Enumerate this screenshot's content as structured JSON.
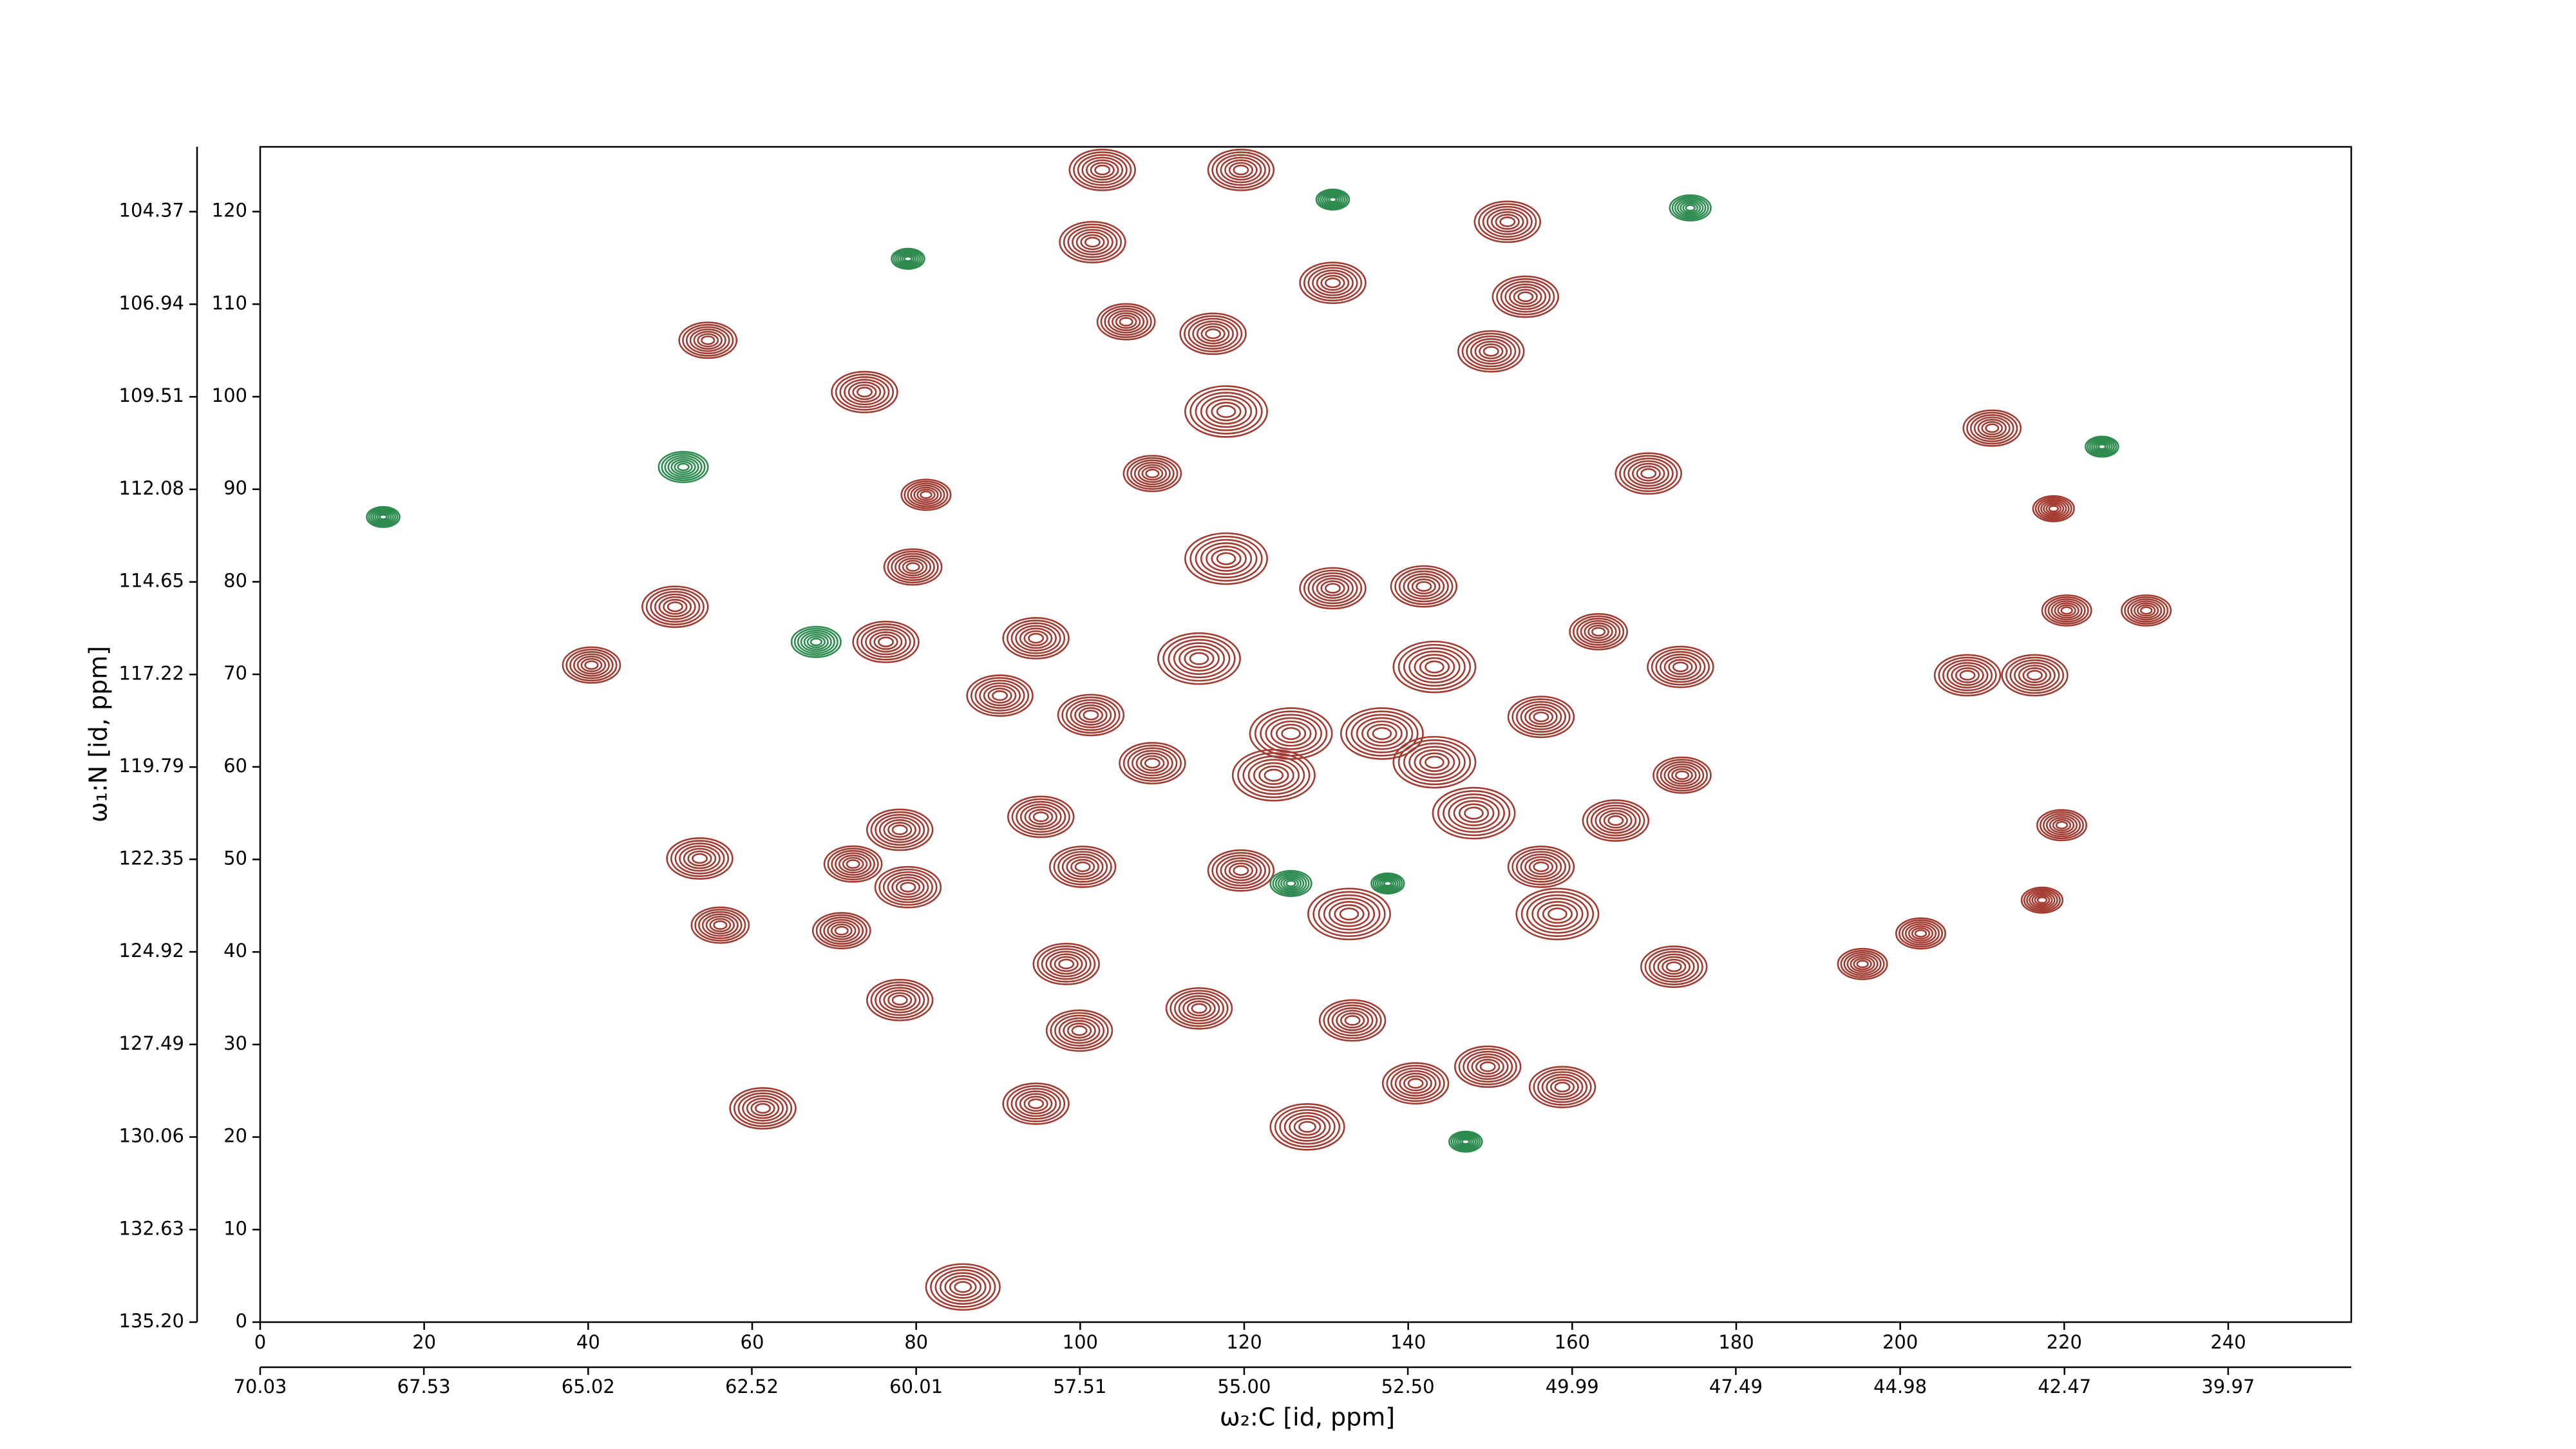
{
  "chart_data": {
    "type": "contour",
    "xlabel": "ω₂:C [id, ppm]",
    "ylabel": "ω₁:N [id, ppm]",
    "xlim": [
      0,
      255
    ],
    "ylim": [
      0,
      127
    ],
    "xticks": [
      0,
      20,
      40,
      60,
      80,
      100,
      120,
      140,
      160,
      180,
      200,
      220,
      240
    ],
    "yticks": [
      0,
      10,
      20,
      30,
      40,
      50,
      60,
      70,
      80,
      90,
      100,
      110,
      120
    ],
    "x2lim": [
      70.03,
      38.09
    ],
    "x2ticks": [
      70.03,
      67.53,
      65.02,
      62.52,
      60.01,
      57.51,
      {
        "value": 55.0,
        "label": "55.00"
      },
      {
        "value": 52.5,
        "label": "52.50"
      },
      49.99,
      47.49,
      44.98,
      42.47,
      39.97
    ],
    "y2lim": [
      135.2,
      102.57
    ],
    "y2ticks": [
      {
        "value": 135.2,
        "label": "135.20"
      },
      132.63,
      130.06,
      127.49,
      124.92,
      122.35,
      119.79,
      117.22,
      114.65,
      112.08,
      109.51,
      106.94,
      104.37
    ],
    "series": [
      {
        "color": "#a33a30",
        "x": [
          102.7,
          119.6,
          101.5,
          152.1,
          130.8,
          154.3,
          105.6,
          116.2,
          54.6,
          150.1,
          73.7,
          117.8,
          211.2,
          108.8,
          169.3,
          81.2,
          218.7,
          117.8,
          79.6,
          130.8,
          141.9,
          50.6,
          220.3,
          230.0,
          40.4,
          76.3,
          94.6,
          114.5,
          163.2,
          173.2,
          208.2,
          216.4,
          90.2,
          101.3,
          125.7,
          143.2,
          156.2,
          173.4,
          108.8,
          148.0,
          219.7,
          95.2,
          78.0,
          53.6,
          100.3,
          119.6,
          165.3,
          156.2,
          72.3,
          79.0,
          56.1,
          70.9,
          132.8,
          158.2,
          202.5,
          195.4,
          217.3,
          98.3,
          172.4,
          78.0,
          114.5,
          133.2,
          99.9,
          140.9,
          158.8,
          149.7,
          94.6,
          61.3,
          127.7,
          85.7,
          143.2,
          123.6,
          136.8
        ],
        "values": [
          124.5,
          124.5,
          116.7,
          118.9,
          112.3,
          110.8,
          108.1,
          106.8,
          106.1,
          104.9,
          100.5,
          98.4,
          96.6,
          91.7,
          91.7,
          89.4,
          87.9,
          82.5,
          81.6,
          79.3,
          79.5,
          77.3,
          76.9,
          76.9,
          71.0,
          73.5,
          73.9,
          71.7,
          74.6,
          70.8,
          69.9,
          69.9,
          67.7,
          65.6,
          63.6,
          70.8,
          65.4,
          59.1,
          60.4,
          55.0,
          53.7,
          54.6,
          53.2,
          50.1,
          49.2,
          48.8,
          54.2,
          49.2,
          49.5,
          47.0,
          42.9,
          42.3,
          44.1,
          44.1,
          42.0,
          38.7,
          45.6,
          38.7,
          38.4,
          34.8,
          33.9,
          32.6,
          31.5,
          25.8,
          25.4,
          27.6,
          23.6,
          23.1,
          21.1,
          3.8,
          60.5,
          59.1,
          63.6
        ],
        "sizes": [
          4,
          4,
          4,
          4,
          4,
          4,
          3.5,
          4,
          3.5,
          4,
          4,
          5,
          3.5,
          3.5,
          4,
          3,
          2.5,
          5,
          3.5,
          4,
          4,
          4,
          3,
          3,
          3.5,
          4,
          4,
          5,
          3.5,
          4,
          4,
          4,
          4,
          4,
          5,
          5,
          4,
          3.5,
          4,
          5,
          3,
          4,
          4,
          4,
          4,
          4,
          4,
          4,
          3.5,
          4,
          3.5,
          3.5,
          5,
          5,
          3,
          3,
          2.5,
          4,
          4,
          4,
          4,
          4,
          4,
          4,
          4,
          4,
          4,
          4,
          4.5,
          4.5,
          5,
          5,
          5
        ]
      },
      {
        "color": "#2e8b4f",
        "x": [
          79.0,
          130.8,
          15.0,
          224.6,
          125.7,
          67.8,
          174.4,
          51.6,
          137.5,
          147.0
        ],
        "values": [
          114.9,
          121.3,
          87.0,
          94.6,
          47.4,
          73.5,
          120.4,
          92.4,
          47.4,
          19.5
        ],
        "sizes": [
          2,
          2,
          2,
          2,
          2.5,
          3,
          2.5,
          3,
          2,
          2
        ]
      }
    ]
  }
}
